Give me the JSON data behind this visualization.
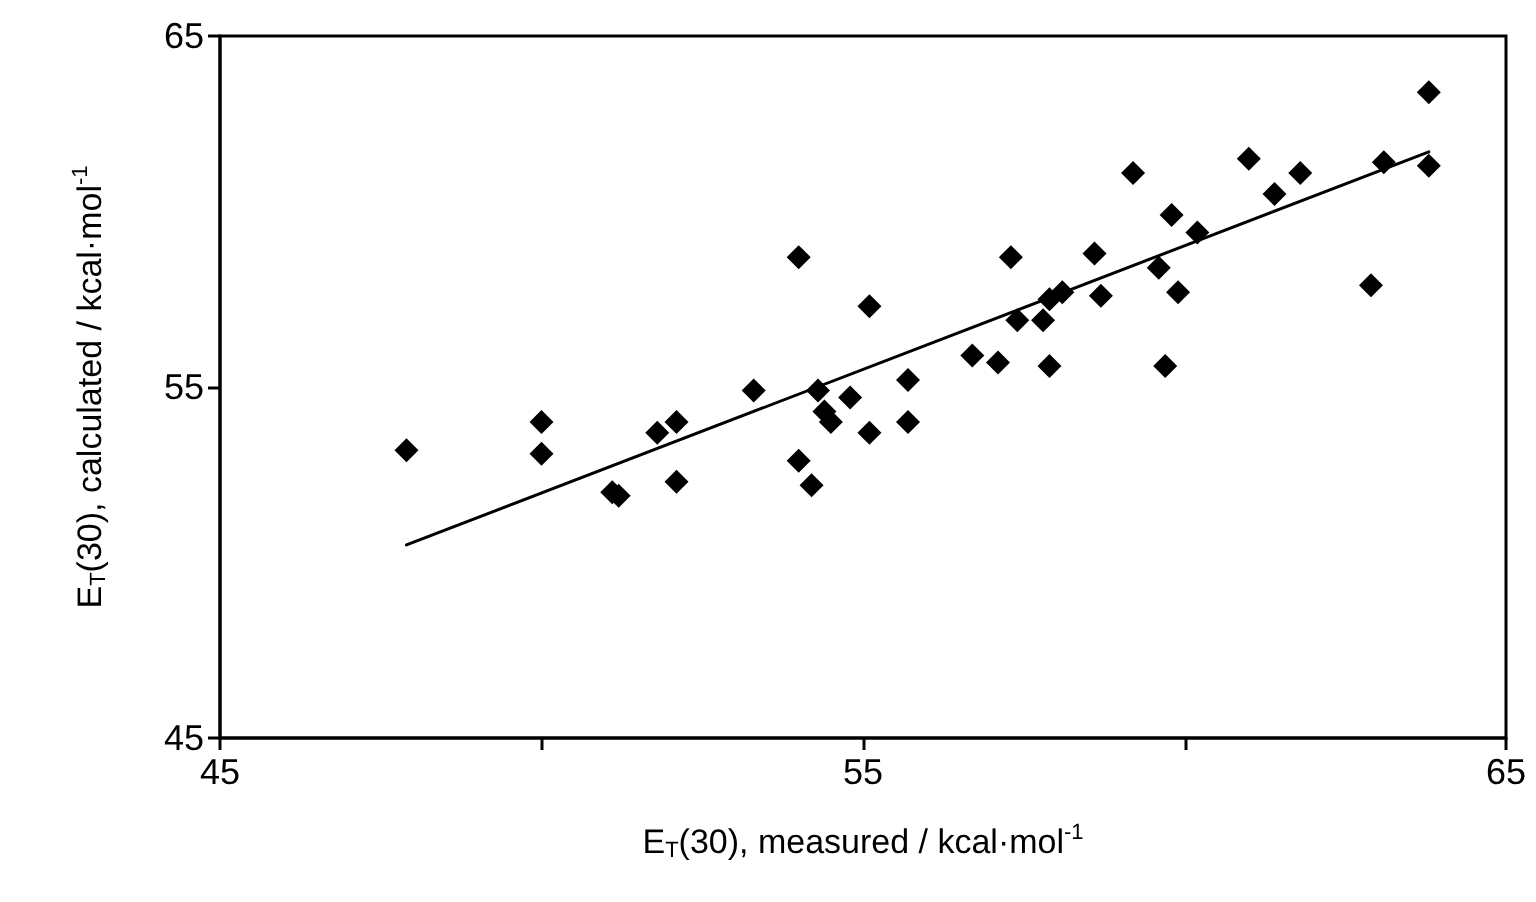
{
  "chart_data": {
    "type": "scatter",
    "xlabel": "E$_{T}$(30), measured / kcal·mol$^{-1}$",
    "ylabel": "E$_{T}$(30), calculated / kcal·mol$^{-1}$",
    "xlim": [
      45,
      65
    ],
    "ylim": [
      45,
      65
    ],
    "xticks": [
      45,
      {
        "value": 50,
        "label": null
      },
      55,
      {
        "value": 60,
        "label": null
      },
      65
    ],
    "yticks": [
      45,
      55,
      65
    ],
    "grid": false,
    "marker": "diamond",
    "series": [
      {
        "color": "#000000",
        "x": [
          47.9,
          50.0,
          50.0,
          51.1,
          51.2,
          51.8,
          52.1,
          52.1,
          53.3,
          54.0,
          54.0,
          54.2,
          54.3,
          54.4,
          54.5,
          54.8,
          55.1,
          55.1,
          55.7,
          55.7,
          56.7,
          57.1,
          57.3,
          57.4,
          57.8,
          57.9,
          57.9,
          58.1,
          58.6,
          58.7,
          59.2,
          59.6,
          59.7,
          59.8,
          59.9,
          60.2,
          61.0,
          61.4,
          61.8,
          62.9,
          63.1,
          63.8,
          63.8
        ],
        "values": [
          53.2,
          54.0,
          53.1,
          52.0,
          51.9,
          53.7,
          54.0,
          52.3,
          54.9,
          58.7,
          52.9,
          52.2,
          54.9,
          54.3,
          54.0,
          54.7,
          53.7,
          57.3,
          55.2,
          54.0,
          55.9,
          55.7,
          58.7,
          56.9,
          56.9,
          55.6,
          57.5,
          57.7,
          58.8,
          57.6,
          61.1,
          58.4,
          55.6,
          59.9,
          57.7,
          59.4,
          61.5,
          60.5,
          61.1,
          57.9,
          61.4,
          63.4,
          61.3
        ]
      },
      {
        "type": "line",
        "color": "#000000",
        "marker": "none",
        "line_style": "solid",
        "x": [
          47.9,
          63.8
        ],
        "values": [
          50.5,
          61.7
        ]
      }
    ]
  }
}
